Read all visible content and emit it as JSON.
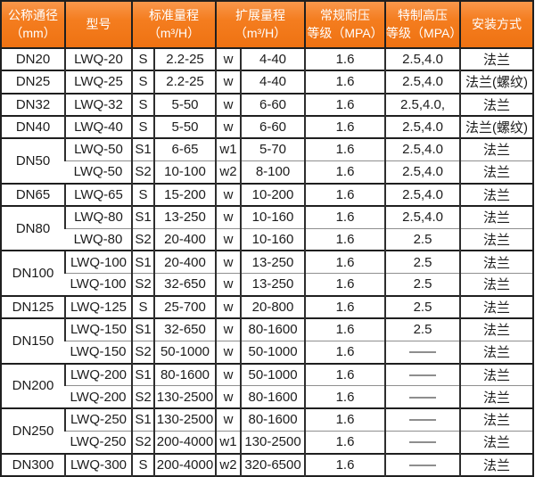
{
  "colors": {
    "header_bg": "#f47d1f",
    "header_text": "#ffffff",
    "border_dark": "#1f1f1f",
    "border_inner": "#8f8f8f",
    "cell_text": "#1c1c1c"
  },
  "table": {
    "columns": [
      {
        "id": "diameter",
        "line1": "公称通径",
        "line2": "（mm）"
      },
      {
        "id": "model",
        "line1": "型号",
        "line2": ""
      },
      {
        "id": "std_range",
        "line1": "标准量程",
        "line2": "（m³/H）"
      },
      {
        "id": "ext_range",
        "line1": "扩展量程",
        "line2": "（m³/H）"
      },
      {
        "id": "pressure_regular",
        "line1": "常规耐压",
        "line2": "等级（MPA）"
      },
      {
        "id": "pressure_high",
        "line1": "特制高压",
        "line2": "等级（MPA）"
      },
      {
        "id": "install",
        "line1": "安装方式",
        "line2": ""
      }
    ],
    "rows": [
      {
        "diameter": "DN20",
        "diameter_rowspan": 1,
        "group_start": true,
        "model": "LWQ-20",
        "s": "S",
        "std": "2.2-25",
        "w": "w",
        "ext": "4-40",
        "regular": "1.6",
        "high": "2.5,4.0",
        "install": "法兰"
      },
      {
        "diameter": "DN25",
        "diameter_rowspan": 1,
        "group_start": true,
        "model": "LWQ-25",
        "s": "S",
        "std": "2.2-25",
        "w": "w",
        "ext": "4-40",
        "regular": "1.6",
        "high": "2.5,4.0",
        "install": "法兰(螺纹)"
      },
      {
        "diameter": "DN32",
        "diameter_rowspan": 1,
        "group_start": true,
        "model": "LWQ-32",
        "s": "S",
        "std": "5-50",
        "w": "w",
        "ext": "6-60",
        "regular": "1.6",
        "high": "2.5,4.0,",
        "install": "法兰"
      },
      {
        "diameter": "DN40",
        "diameter_rowspan": 1,
        "group_start": true,
        "model": "LWQ-40",
        "s": "S",
        "std": "5-50",
        "w": "w",
        "ext": "6-60",
        "regular": "1.6",
        "high": "2.5,4.0",
        "install": "法兰(螺纹)"
      },
      {
        "diameter": "DN50",
        "diameter_rowspan": 2,
        "group_start": true,
        "model": "LWQ-50",
        "s": "S1",
        "std": "6-65",
        "w": "w1",
        "ext": "5-70",
        "regular": "1.6",
        "high": "2.5,4.0",
        "install": "法兰"
      },
      {
        "diameter": null,
        "diameter_rowspan": 0,
        "group_start": false,
        "model": "LWQ-50",
        "s": "S2",
        "std": "10-100",
        "w": "w2",
        "ext": "8-100",
        "regular": "1.6",
        "high": "2.5,4.0",
        "install": "法兰"
      },
      {
        "diameter": "DN65",
        "diameter_rowspan": 1,
        "group_start": true,
        "model": "LWQ-65",
        "s": "S",
        "std": "15-200",
        "w": "w",
        "ext": "10-200",
        "regular": "1.6",
        "high": "2.5,4.0",
        "install": "法兰"
      },
      {
        "diameter": "DN80",
        "diameter_rowspan": 2,
        "group_start": true,
        "model": "LWQ-80",
        "s": "S1",
        "std": "13-250",
        "w": "w",
        "ext": "10-160",
        "regular": "1.6",
        "high": "2.5,4.0",
        "install": "法兰"
      },
      {
        "diameter": null,
        "diameter_rowspan": 0,
        "group_start": false,
        "model": "LWQ-80",
        "s": "S2",
        "std": "20-400",
        "w": "w",
        "ext": "10-160",
        "regular": "1.6",
        "high": "2.5",
        "install": "法兰"
      },
      {
        "diameter": "DN100",
        "diameter_rowspan": 2,
        "group_start": true,
        "model": "LWQ-100",
        "s": "S1",
        "std": "20-400",
        "w": "w",
        "ext": "13-250",
        "regular": "1.6",
        "high": "2.5",
        "install": "法兰"
      },
      {
        "diameter": null,
        "diameter_rowspan": 0,
        "group_start": false,
        "model": "LWQ-100",
        "s": "S2",
        "std": "32-650",
        "w": "w",
        "ext": "13-250",
        "regular": "1.6",
        "high": "2.5",
        "install": "法兰"
      },
      {
        "diameter": "DN125",
        "diameter_rowspan": 1,
        "group_start": true,
        "model": "LWQ-125",
        "s": "S",
        "std": "25-700",
        "w": "w",
        "ext": "20-800",
        "regular": "1.6",
        "high": "2.5",
        "install": "法兰"
      },
      {
        "diameter": "DN150",
        "diameter_rowspan": 2,
        "group_start": true,
        "model": "LWQ-150",
        "s": "S1",
        "std": "32-650",
        "w": "w",
        "ext": "80-1600",
        "regular": "1.6",
        "high": "2.5",
        "install": "法兰"
      },
      {
        "diameter": null,
        "diameter_rowspan": 0,
        "group_start": false,
        "model": "LWQ-150",
        "s": "S2",
        "std": "50-1000",
        "w": "w",
        "ext": "50-1000",
        "regular": "1.6",
        "high": "——",
        "install": "法兰"
      },
      {
        "diameter": "DN200",
        "diameter_rowspan": 2,
        "group_start": true,
        "model": "LWQ-200",
        "s": "S1",
        "std": "80-1600",
        "w": "w",
        "ext": "50-1000",
        "regular": "1.6",
        "high": "——",
        "install": "法兰"
      },
      {
        "diameter": null,
        "diameter_rowspan": 0,
        "group_start": false,
        "model": "LWQ-200",
        "s": "S2",
        "std": "130-2500",
        "w": "w",
        "ext": "80-1600",
        "regular": "1.6",
        "high": "——",
        "install": "法兰"
      },
      {
        "diameter": "DN250",
        "diameter_rowspan": 2,
        "group_start": true,
        "model": "LWQ-250",
        "s": "S1",
        "std": "130-2500",
        "w": "w",
        "ext": "80-1600",
        "regular": "1.6",
        "high": "——",
        "install": "法兰"
      },
      {
        "diameter": null,
        "diameter_rowspan": 0,
        "group_start": false,
        "model": "LWQ-250",
        "s": "S2",
        "std": "200-4000",
        "w": "w1",
        "ext": "130-2500",
        "regular": "1.6",
        "high": "——",
        "install": "法兰"
      },
      {
        "diameter": "DN300",
        "diameter_rowspan": 1,
        "group_start": true,
        "model": "LWQ-300",
        "s": "S",
        "std": "200-4000",
        "w": "w2",
        "ext": "320-6500",
        "regular": "1.6",
        "high": "——",
        "install": "法兰"
      }
    ]
  }
}
